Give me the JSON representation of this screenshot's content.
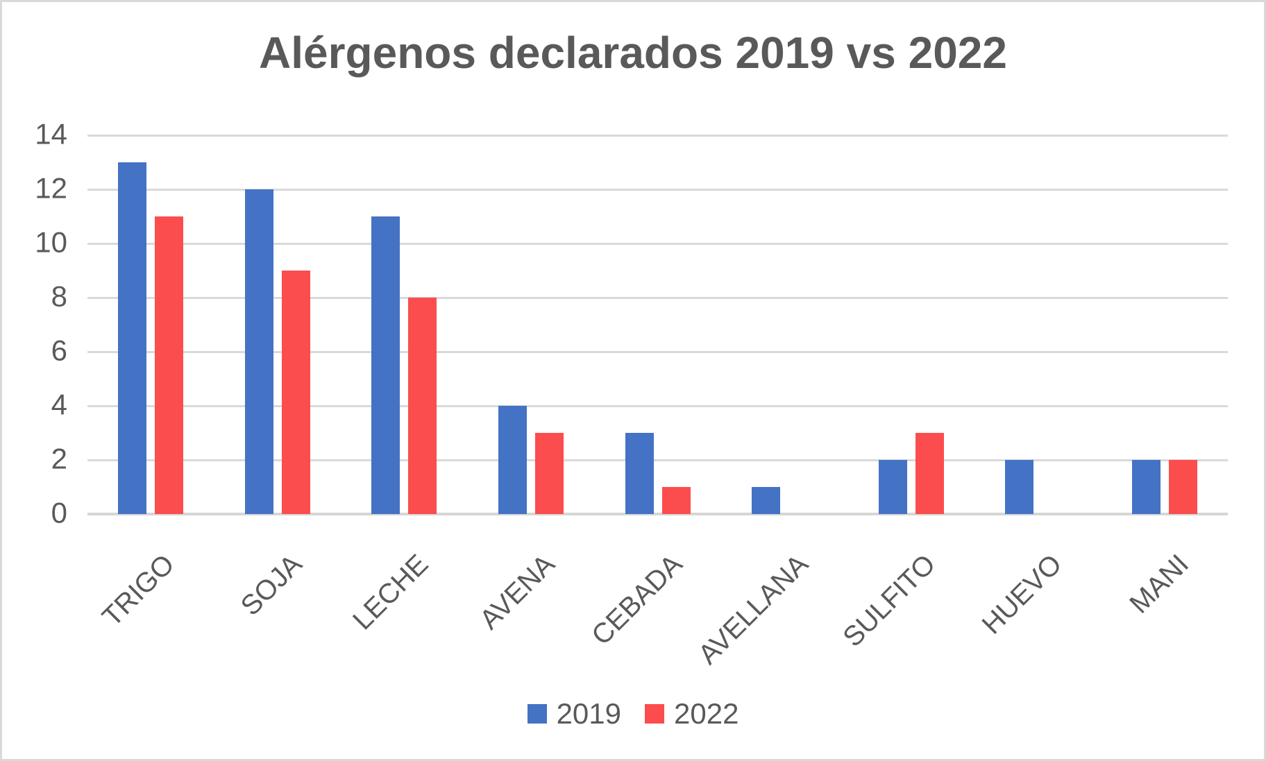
{
  "colors": {
    "series_2019": "#4472C4",
    "series_2022": "#FB4D4D",
    "grid": "#D9D9D9",
    "text": "#595959",
    "frame_border": "#D9D9D9",
    "background": "#FFFFFF"
  },
  "chart_data": {
    "type": "bar",
    "title": "Alérgenos declarados 2019 vs 2022",
    "categories": [
      "TRIGO",
      "SOJA",
      "LECHE",
      "AVENA",
      "CEBADA",
      "AVELLANA",
      "SULFITO",
      "HUEVO",
      "MANI"
    ],
    "series": [
      {
        "name": "2019",
        "color": "#4472C4",
        "values": [
          13,
          12,
          11,
          4,
          3,
          1,
          2,
          2,
          2
        ]
      },
      {
        "name": "2022",
        "color": "#FB4D4D",
        "values": [
          11,
          9,
          8,
          3,
          1,
          0,
          3,
          0,
          2
        ]
      }
    ],
    "xlabel": "",
    "ylabel": "",
    "ylim": [
      0,
      14
    ],
    "y_ticks": [
      0,
      2,
      4,
      6,
      8,
      10,
      12,
      14
    ],
    "grid": true,
    "gridlines": "horizontal",
    "legend_position": "bottom",
    "x_label_rotation_deg": -45
  }
}
